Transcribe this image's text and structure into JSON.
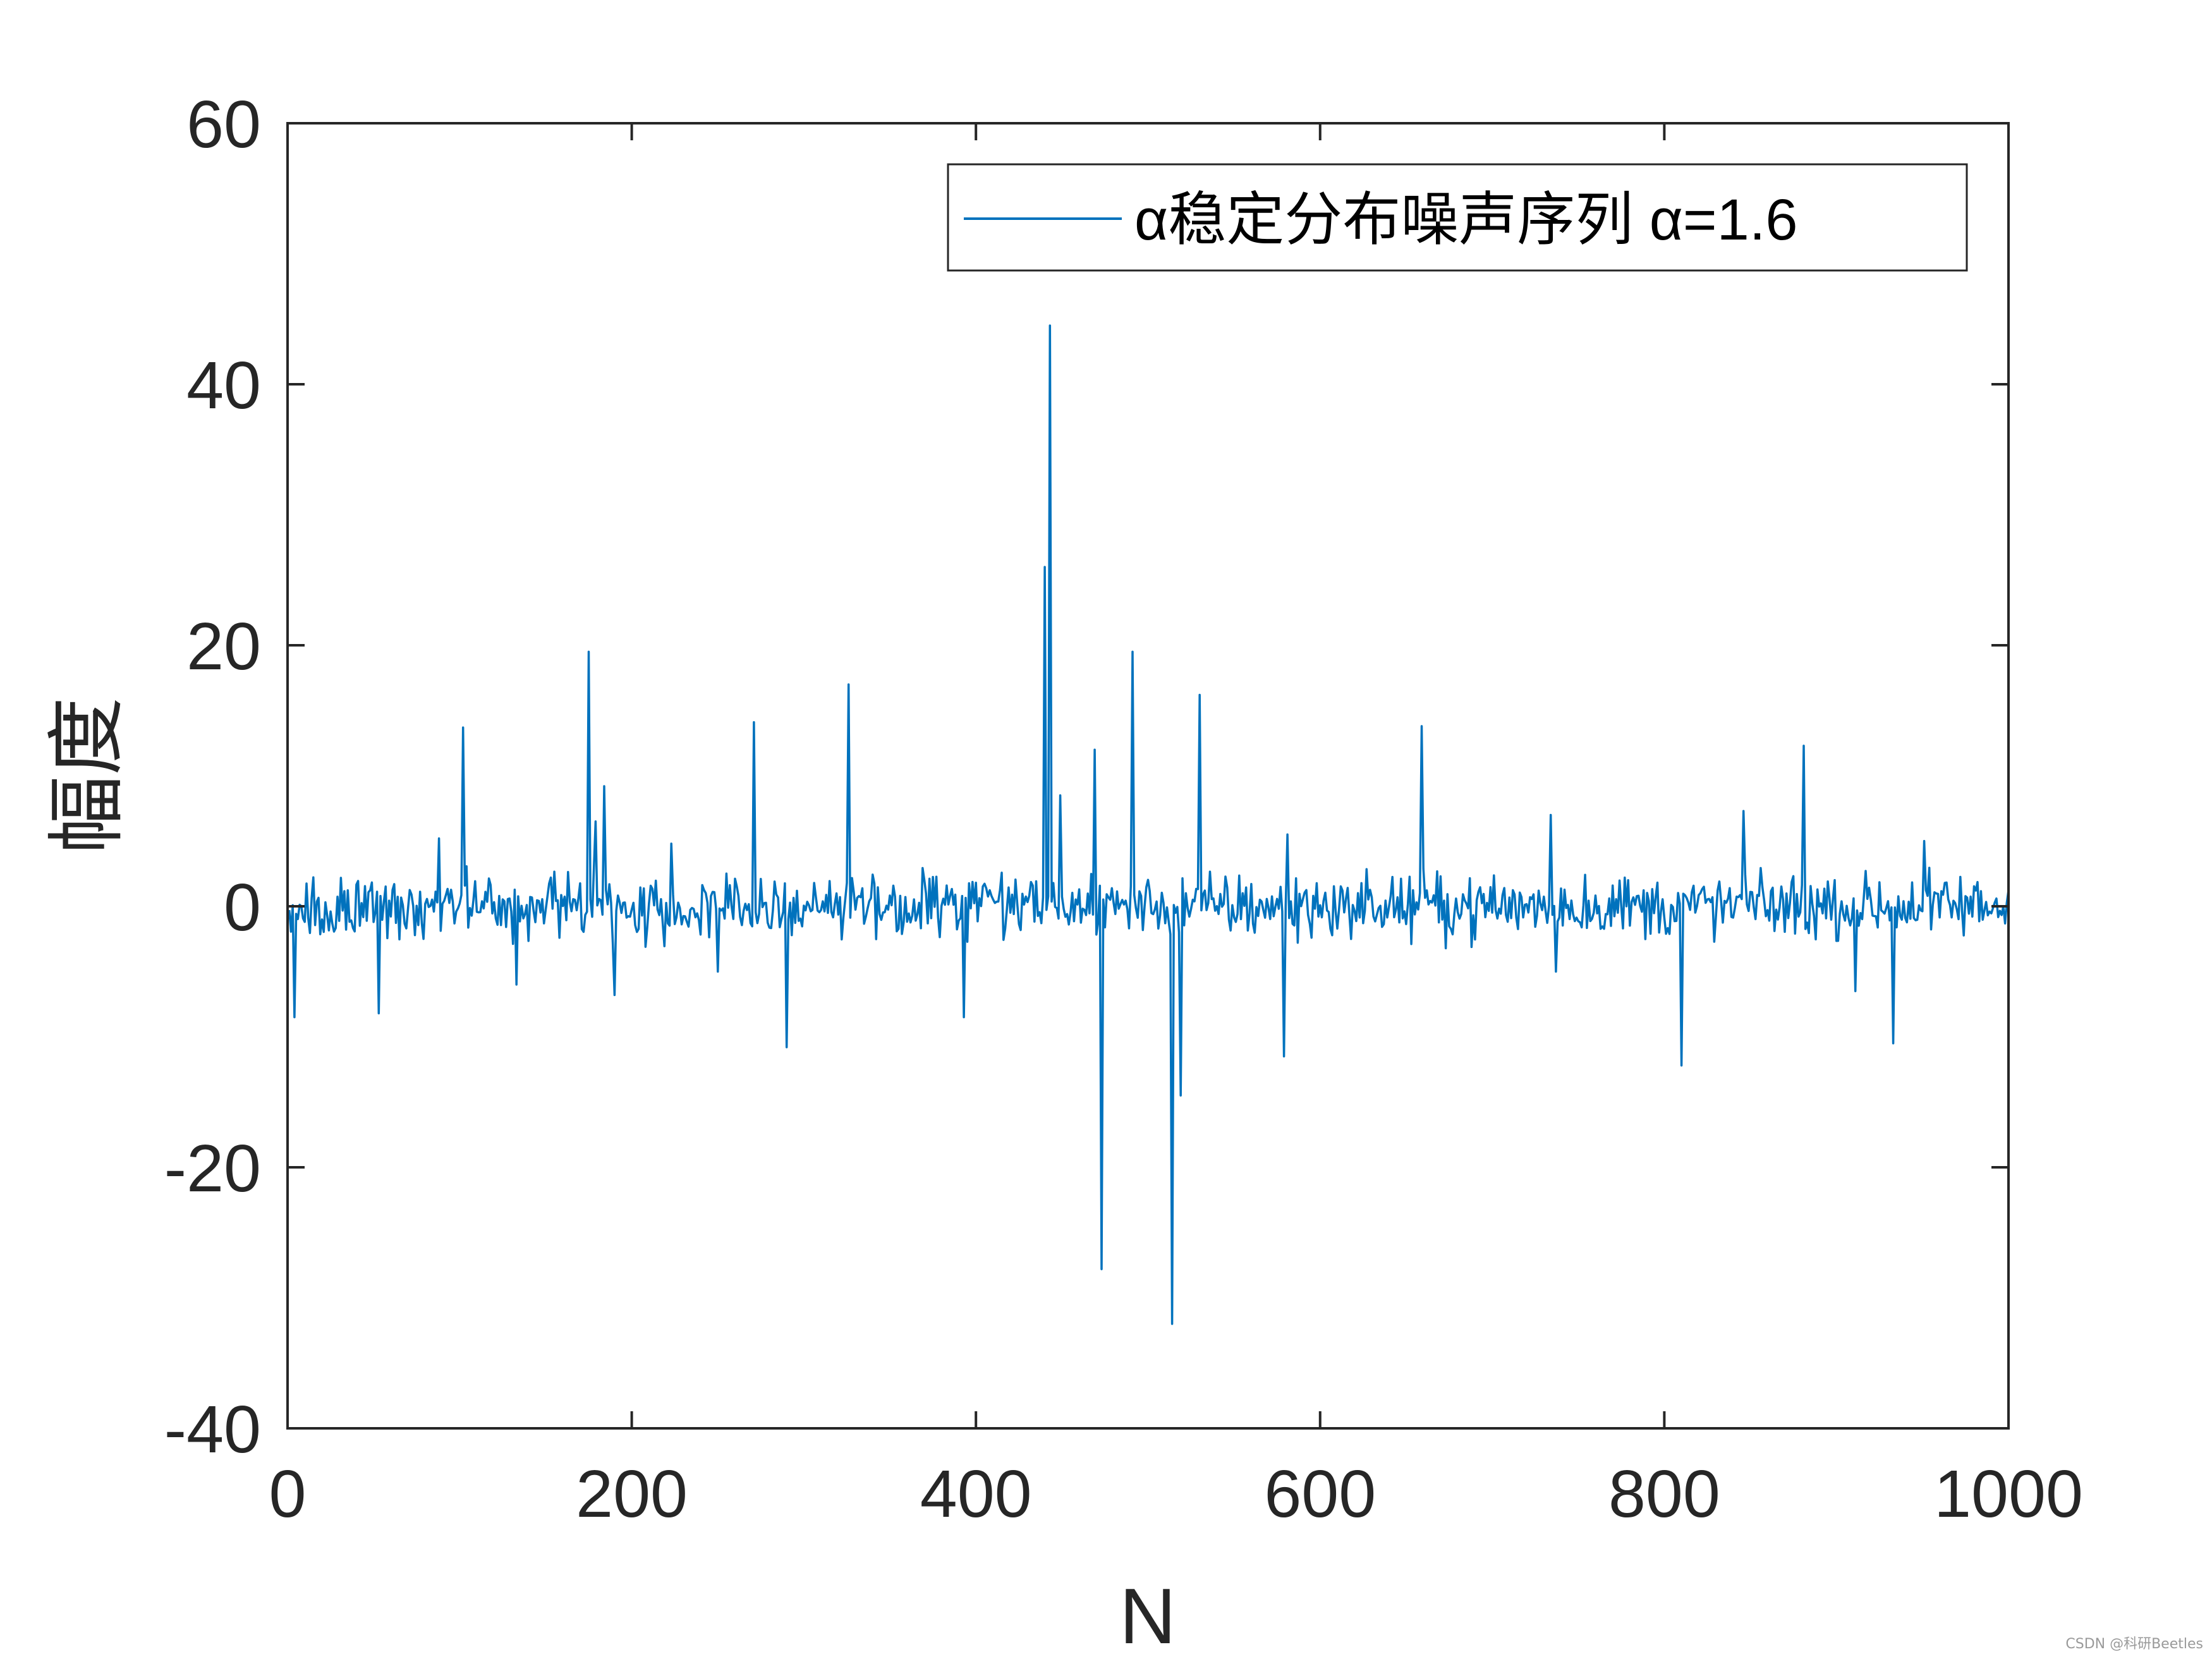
{
  "colors": {
    "series": "#0072BD",
    "axes": "#262626",
    "background": "#ffffff"
  },
  "watermark": "CSDN @科研Beetles",
  "chart_data": {
    "type": "line",
    "xlabel": "N",
    "ylabel": "幅度",
    "xlim": [
      0,
      1000
    ],
    "ylim": [
      -40,
      60
    ],
    "xticks": [
      0,
      200,
      400,
      600,
      800,
      1000
    ],
    "yticks": [
      -40,
      -20,
      0,
      20,
      40,
      60
    ],
    "xtick_labels": [
      "0",
      "200",
      "400",
      "600",
      "800",
      "1000"
    ],
    "ytick_labels": [
      "-40",
      "-20",
      "0",
      "20",
      "40",
      "60"
    ],
    "grid": false,
    "legend": {
      "position": "top-right",
      "entries": [
        "α稳定分布噪声序列 α=1.6"
      ]
    },
    "series": [
      {
        "name": "α稳定分布噪声序列 α=1.6",
        "n_points": 1000,
        "background_noise_range": [
          -3,
          3
        ],
        "impulses": [
          [
            3,
            -8.5
          ],
          [
            52,
            -8.2
          ],
          [
            87,
            5.2
          ],
          [
            101,
            13.7
          ],
          [
            132,
            -6.0
          ],
          [
            174,
            19.5
          ],
          [
            178,
            6.5
          ],
          [
            183,
            9.2
          ],
          [
            189,
            -6.8
          ],
          [
            222,
            4.8
          ],
          [
            249,
            -5.0
          ],
          [
            270,
            14.1
          ],
          [
            289,
            -10.8
          ],
          [
            325,
            17.0
          ],
          [
            392,
            -8.5
          ],
          [
            439,
            26.0
          ],
          [
            442,
            44.5
          ],
          [
            448,
            8.5
          ],
          [
            468,
            12.0
          ],
          [
            472,
            -27.8
          ],
          [
            490,
            19.5
          ],
          [
            513,
            -32.0
          ],
          [
            518,
            -14.5
          ],
          [
            529,
            16.2
          ],
          [
            578,
            -11.5
          ],
          [
            580,
            5.5
          ],
          [
            658,
            13.8
          ],
          [
            733,
            7.0
          ],
          [
            736,
            -5.0
          ],
          [
            809,
            -12.2
          ],
          [
            845,
            7.3
          ],
          [
            880,
            12.3
          ],
          [
            910,
            -6.5
          ],
          [
            932,
            -10.5
          ],
          [
            950,
            5.0
          ]
        ]
      }
    ]
  }
}
